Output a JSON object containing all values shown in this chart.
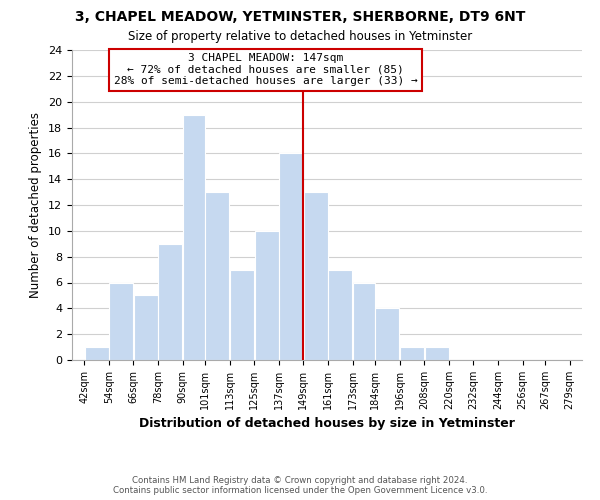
{
  "title1": "3, CHAPEL MEADOW, YETMINSTER, SHERBORNE, DT9 6NT",
  "title2": "Size of property relative to detached houses in Yetminster",
  "xlabel": "Distribution of detached houses by size in Yetminster",
  "ylabel": "Number of detached properties",
  "bar_edges": [
    42,
    54,
    66,
    78,
    90,
    101,
    113,
    125,
    137,
    149,
    161,
    173,
    184,
    196,
    208,
    220,
    232,
    244,
    256,
    267,
    279
  ],
  "bar_heights": [
    1,
    6,
    5,
    9,
    19,
    13,
    7,
    10,
    16,
    13,
    7,
    6,
    4,
    1,
    1,
    0,
    0,
    0,
    0,
    0
  ],
  "bar_color": "#c6d9f0",
  "bar_edgecolor": "#ffffff",
  "ref_line_x": 149,
  "ref_line_color": "#cc0000",
  "annotation_title": "3 CHAPEL MEADOW: 147sqm",
  "annotation_line1": "← 72% of detached houses are smaller (85)",
  "annotation_line2": "28% of semi-detached houses are larger (33) →",
  "annotation_box_edgecolor": "#cc0000",
  "ylim": [
    0,
    24
  ],
  "yticks": [
    0,
    2,
    4,
    6,
    8,
    10,
    12,
    14,
    16,
    18,
    20,
    22,
    24
  ],
  "tick_labels": [
    "42sqm",
    "54sqm",
    "66sqm",
    "78sqm",
    "90sqm",
    "101sqm",
    "113sqm",
    "125sqm",
    "137sqm",
    "149sqm",
    "161sqm",
    "173sqm",
    "184sqm",
    "196sqm",
    "208sqm",
    "220sqm",
    "232sqm",
    "244sqm",
    "256sqm",
    "267sqm",
    "279sqm"
  ],
  "footer1": "Contains HM Land Registry data © Crown copyright and database right 2024.",
  "footer2": "Contains public sector information licensed under the Open Government Licence v3.0.",
  "background_color": "#ffffff",
  "grid_color": "#d0d0d0"
}
